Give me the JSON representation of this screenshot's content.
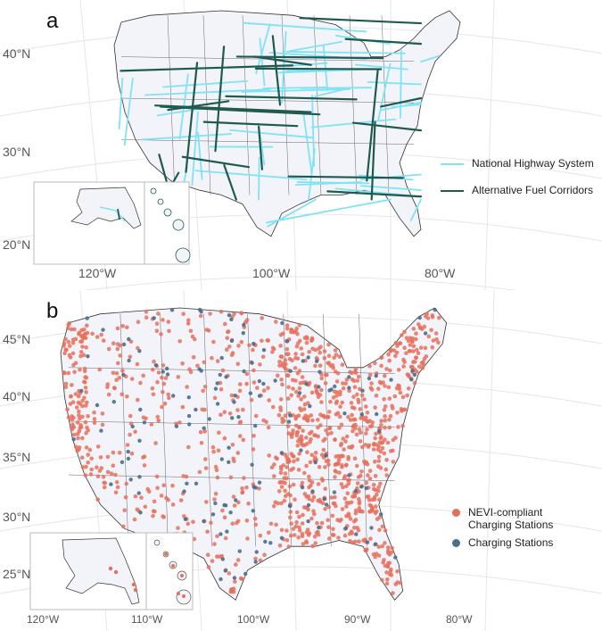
{
  "panel_a": {
    "letter": "a",
    "lat_labels": [
      "40°N",
      "30°N",
      "20°N"
    ],
    "lon_labels": [
      "120°W",
      "100°W",
      "80°W"
    ],
    "legend": [
      {
        "label": "National Highway System",
        "color": "#7fe3f5"
      },
      {
        "label": "Alternative Fuel Corridors",
        "color": "#1f5a4e"
      }
    ]
  },
  "panel_b": {
    "letter": "b",
    "lat_labels": [
      "45°N",
      "40°N",
      "35°N",
      "30°N",
      "25°N"
    ],
    "lon_labels": [
      "120°W",
      "110°W",
      "100°W",
      "90°W",
      "80°W"
    ],
    "legend": [
      {
        "label": "NEVI-compliant\nCharging Stations",
        "color": "#e5705a"
      },
      {
        "label": "Charging Stations",
        "color": "#4a6d8c"
      }
    ]
  },
  "colors": {
    "land": "#f3f3fa",
    "border": "#333333",
    "graticule": "#e6e6e6",
    "nhs": "#7fe3f5",
    "afc": "#1f5a4e",
    "nevi": "#e5705a",
    "charging": "#4a6d8c"
  }
}
